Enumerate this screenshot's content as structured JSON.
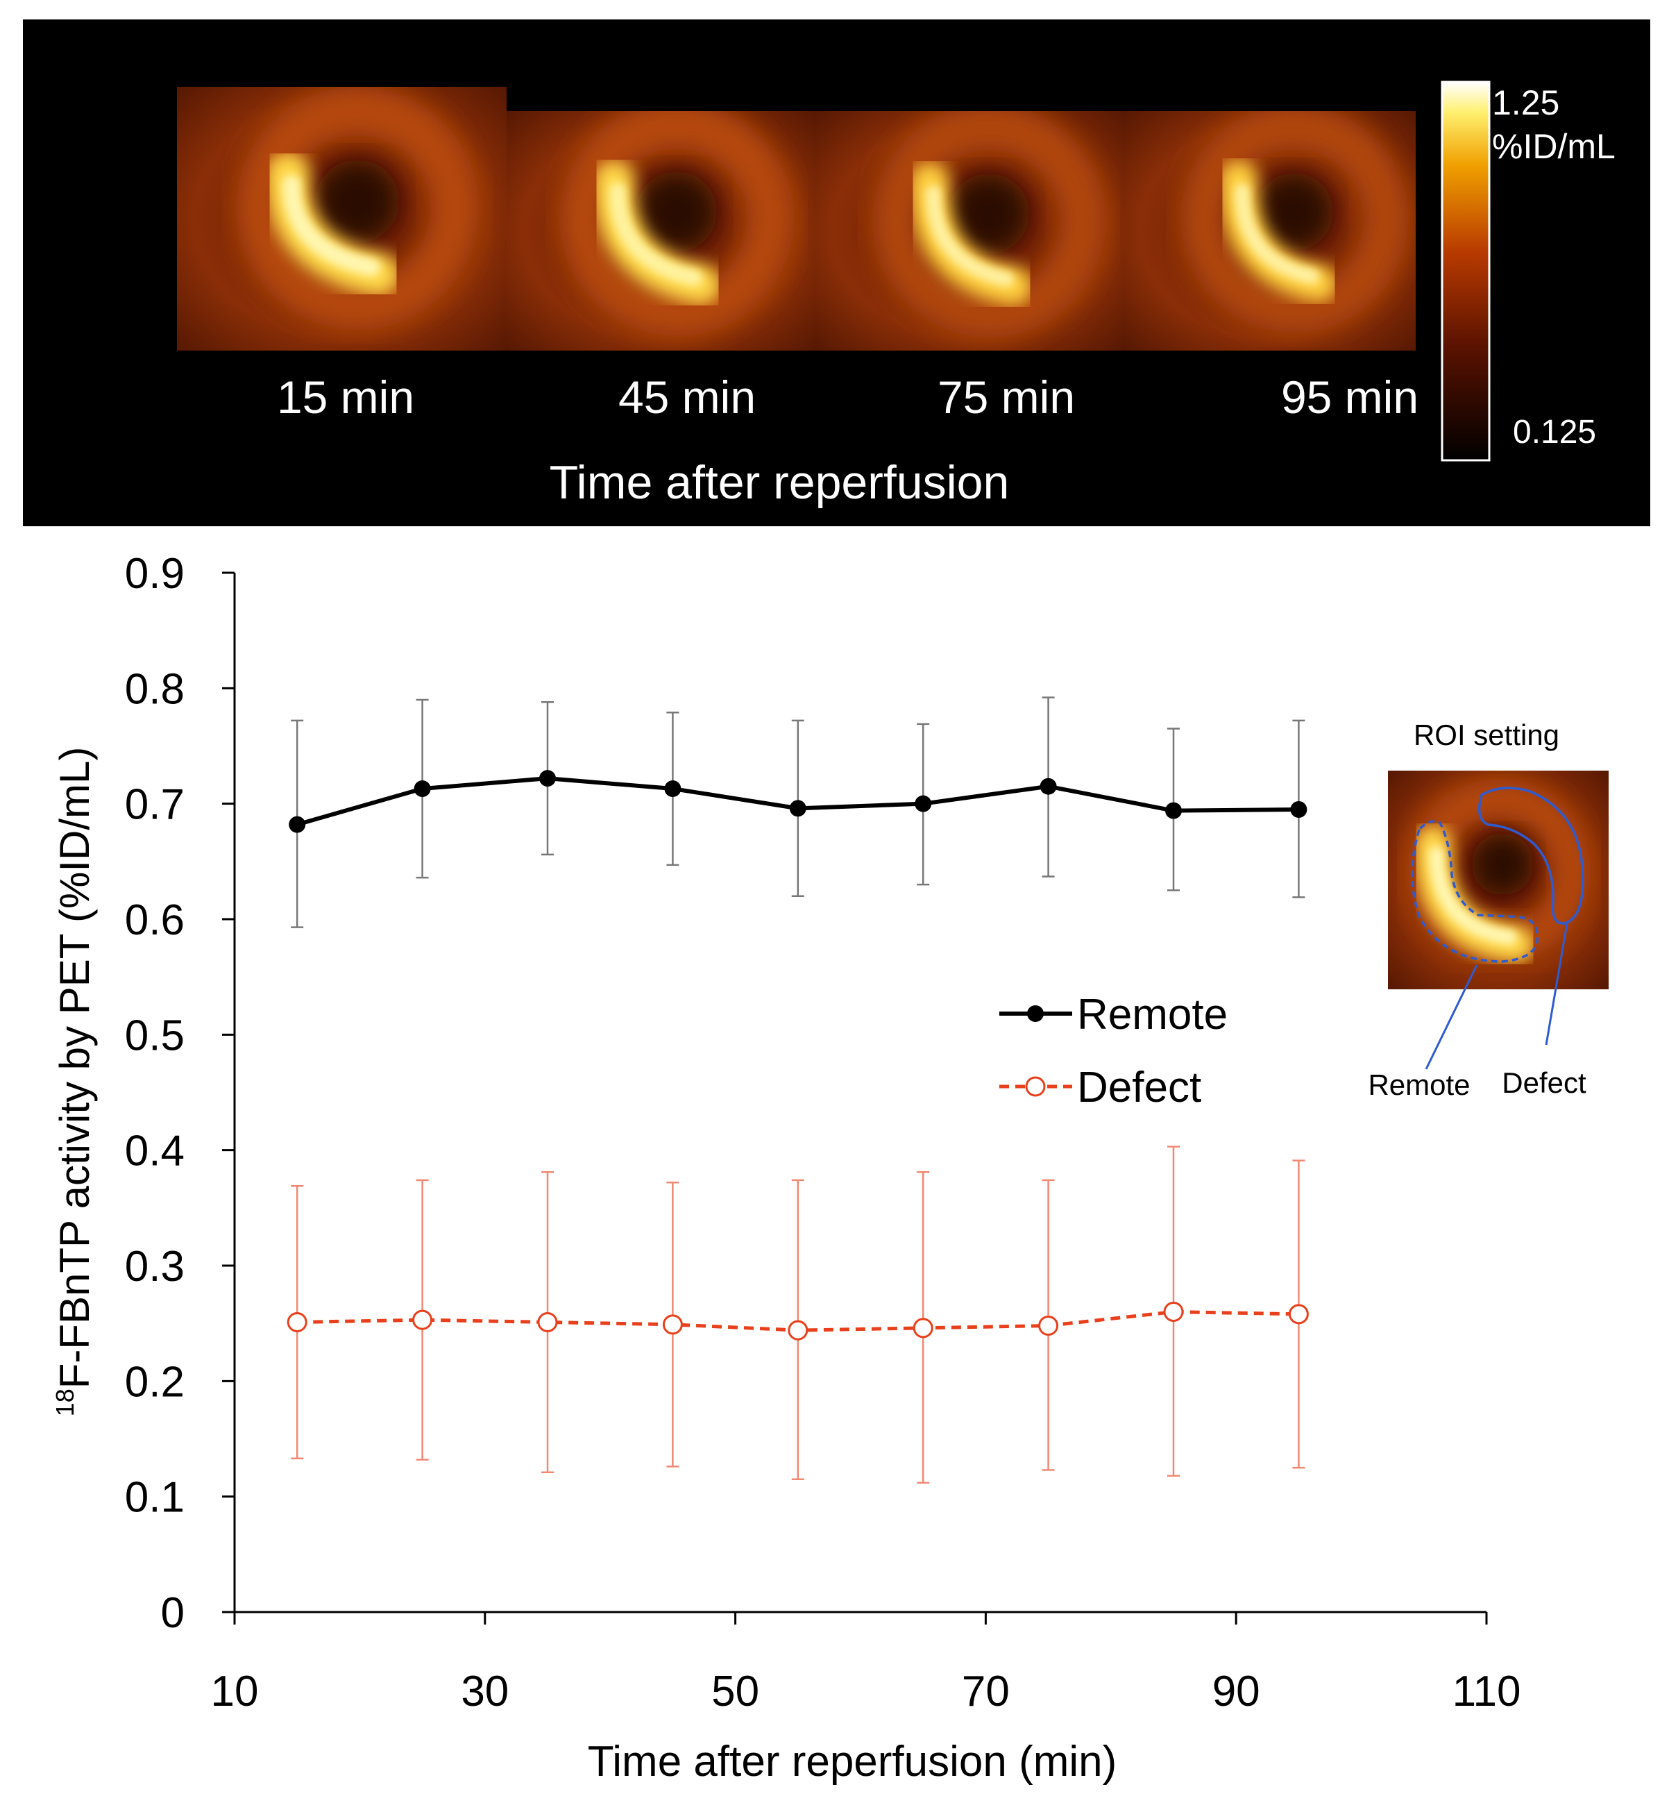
{
  "pet_panel": {
    "frames": [
      {
        "label": "15 min"
      },
      {
        "label": "45 min"
      },
      {
        "label": "75 min"
      },
      {
        "label": "95 min"
      }
    ],
    "xlabel": "Time after reperfusion",
    "colorbar": {
      "max_label": "1.25",
      "unit_label": "%ID/mL",
      "min_label": "0.125"
    }
  },
  "roi_inset": {
    "title": "ROI setting",
    "remote_label": "Remote",
    "defect_label": "Defect"
  },
  "chart_data": {
    "type": "line",
    "title": "",
    "xlabel": "Time after reperfusion (min)",
    "ylabel_super": "18",
    "ylabel_rest": "F-FBnTP activity by PET (%ID/mL)",
    "xlim": [
      10,
      110
    ],
    "ylim": [
      0,
      0.9
    ],
    "xticks": [
      10,
      30,
      50,
      70,
      90,
      110
    ],
    "yticks": [
      0,
      0.1,
      0.2,
      0.3,
      0.4,
      0.5,
      0.6,
      0.7,
      0.8,
      0.9
    ],
    "x": [
      15,
      25,
      35,
      45,
      55,
      65,
      75,
      85,
      95
    ],
    "series": [
      {
        "name": "Remote",
        "color": "#000000",
        "values": [
          0.682,
          0.713,
          0.722,
          0.713,
          0.696,
          0.7,
          0.715,
          0.694,
          0.695
        ],
        "err_upper": [
          0.772,
          0.79,
          0.788,
          0.779,
          0.772,
          0.769,
          0.792,
          0.765,
          0.772
        ],
        "err_lower": [
          0.593,
          0.636,
          0.656,
          0.647,
          0.62,
          0.63,
          0.637,
          0.625,
          0.619
        ]
      },
      {
        "name": "Defect",
        "color": "#e8401c",
        "values": [
          0.251,
          0.253,
          0.251,
          0.249,
          0.244,
          0.246,
          0.248,
          0.26,
          0.258
        ],
        "err_upper": [
          0.369,
          0.374,
          0.381,
          0.372,
          0.374,
          0.381,
          0.374,
          0.403,
          0.391
        ],
        "err_lower": [
          0.133,
          0.132,
          0.121,
          0.126,
          0.115,
          0.112,
          0.123,
          0.118,
          0.125
        ]
      }
    ],
    "legend_position": "center-right"
  }
}
